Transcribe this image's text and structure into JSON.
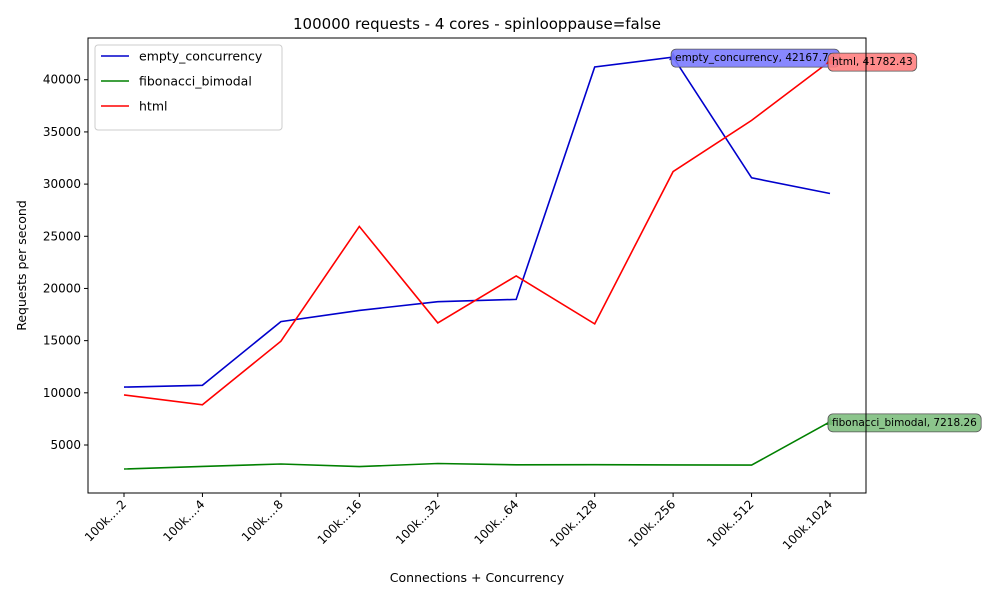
{
  "chart_data": {
    "type": "line",
    "title": "100000 requests - 4 cores - spinlooppause=false",
    "xlabel": "Connections + Concurrency",
    "ylabel": "Requests per second",
    "categories": [
      "100k....2",
      "100k....4",
      "100k....8",
      "100k...16",
      "100k...32",
      "100k...64",
      "100k..128",
      "100k..256",
      "100k..512",
      "100k.1024"
    ],
    "ylim": [
      400,
      44000
    ],
    "yticks": [
      5000,
      10000,
      15000,
      20000,
      25000,
      30000,
      35000,
      40000
    ],
    "grid": false,
    "legend_position": "top-left",
    "series": [
      {
        "name": "empty_concurrency",
        "color": "#0000cc",
        "values": [
          10550,
          10720,
          16820,
          17900,
          18730,
          18950,
          41220,
          42167.73,
          30600,
          29100
        ]
      },
      {
        "name": "fibonacci_bimodal",
        "color": "#008000",
        "values": [
          2700,
          2950,
          3180,
          2930,
          3230,
          3100,
          3110,
          3090,
          3070,
          7218.26
        ]
      },
      {
        "name": "html",
        "color": "#ff0000",
        "values": [
          9800,
          8850,
          14950,
          25950,
          16700,
          21200,
          16600,
          31200,
          36100,
          41782.43
        ]
      }
    ],
    "annotations": [
      {
        "text": "empty_concurrency, 42167.73",
        "series": 0,
        "index": 7,
        "color": "#7b7bff"
      },
      {
        "text": "html, 41782.43",
        "series": 2,
        "index": 9,
        "color": "#ff7f7f"
      },
      {
        "text": "fibonacci_bimodal, 7218.26",
        "series": 1,
        "index": 9,
        "color": "#7fbf7f"
      }
    ]
  }
}
